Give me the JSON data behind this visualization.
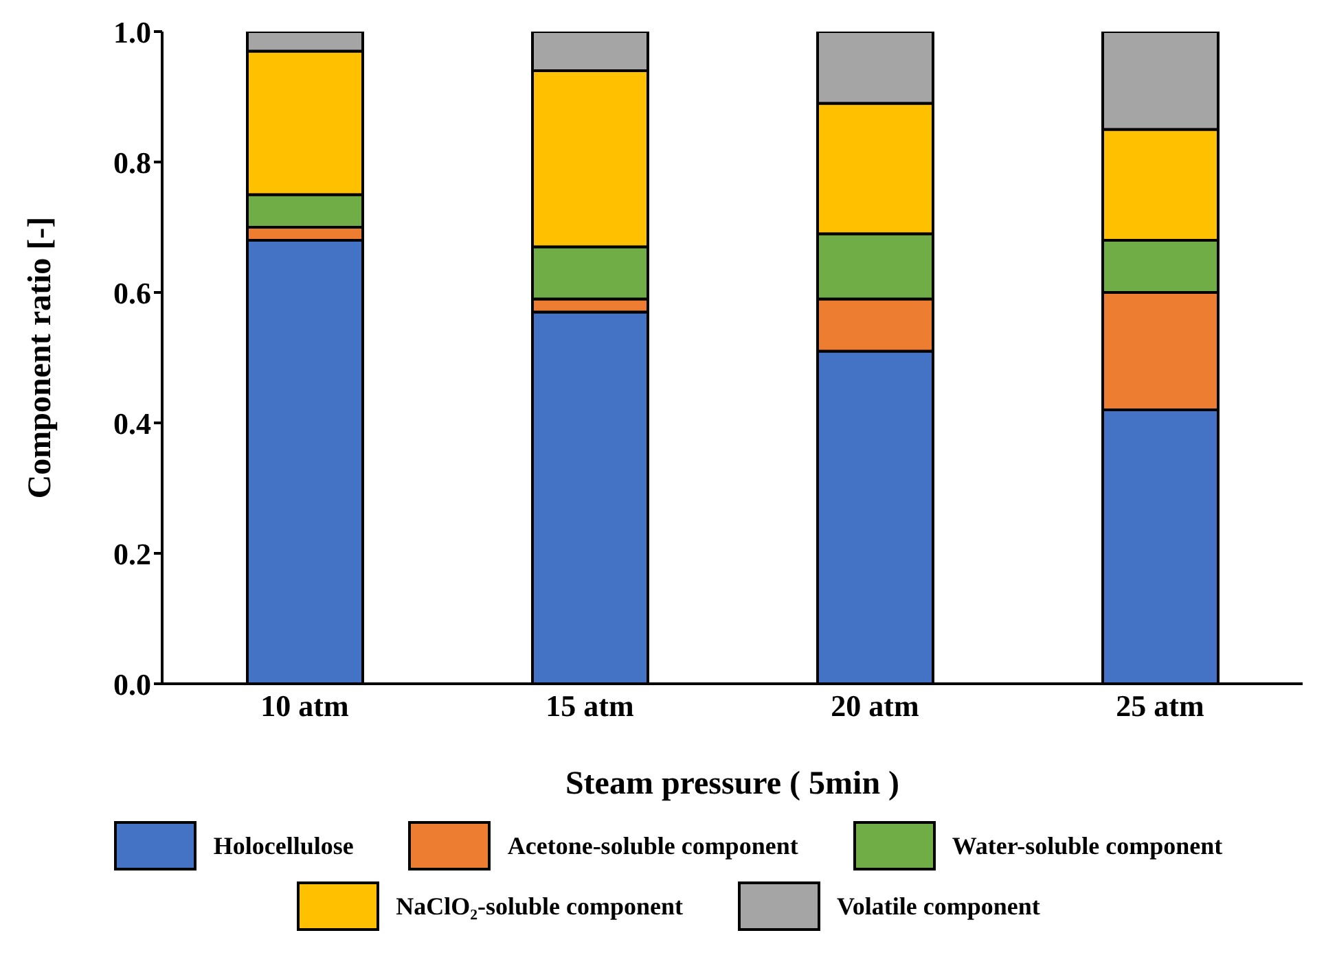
{
  "chart_data": {
    "type": "bar",
    "stacked": true,
    "xlabel": "Steam pressure ( 5min )",
    "ylabel": "Component ratio [-]",
    "categories": [
      "10 atm",
      "15 atm",
      "20 atm",
      "25 atm"
    ],
    "series": [
      {
        "name": "Holocellulose",
        "color": "#4472c4",
        "values": [
          0.68,
          0.57,
          0.51,
          0.42
        ]
      },
      {
        "name": "Acetone-soluble component",
        "color": "#ed7d31",
        "values": [
          0.02,
          0.02,
          0.08,
          0.18
        ]
      },
      {
        "name": "Water-soluble component",
        "color": "#70ad47",
        "values": [
          0.05,
          0.08,
          0.1,
          0.08
        ]
      },
      {
        "name": "NaClO₂-soluble component",
        "color": "#ffc000",
        "values": [
          0.22,
          0.27,
          0.2,
          0.17
        ]
      },
      {
        "name": "Volatile component",
        "color": "#a5a5a5",
        "values": [
          0.03,
          0.06,
          0.11,
          0.15
        ]
      }
    ],
    "ylim": [
      0,
      1
    ],
    "yticks": [
      {
        "value": 0,
        "label": "0.0"
      },
      {
        "value": 0.2,
        "label": "0.2"
      },
      {
        "value": 0.4,
        "label": "0.4"
      },
      {
        "value": 0.6,
        "label": "0.6"
      },
      {
        "value": 0.8,
        "label": "0.8"
      },
      {
        "value": 1,
        "label": "1.0"
      }
    ],
    "grid": false,
    "legend": "bottom"
  }
}
